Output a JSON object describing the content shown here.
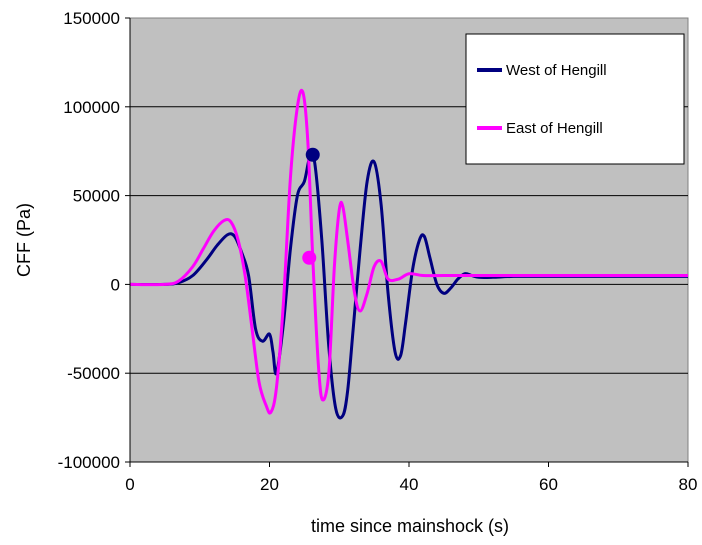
{
  "chart_data": {
    "type": "line",
    "title": "",
    "xlabel": "time since mainshock (s)",
    "ylabel": "CFF  (Pa)",
    "xlim": [
      0,
      80
    ],
    "ylim": [
      -100000,
      150000
    ],
    "xticks": [
      "0",
      "20",
      "40",
      "60",
      "80"
    ],
    "yticks": [
      "-100000",
      "-50000",
      "0",
      "50000",
      "100000",
      "150000"
    ],
    "grid": "horizontal",
    "plot_background": "#c0c0c0",
    "legend_position": "top-right",
    "series": [
      {
        "name": "West of Hengill",
        "color": "#000080",
        "x": [
          0,
          5,
          7,
          9,
          11,
          12.5,
          14,
          15,
          16,
          17,
          18,
          19,
          20,
          20.5,
          21,
          22,
          23,
          24,
          25,
          25.8,
          26.5,
          27.5,
          28.5,
          29.5,
          30.5,
          31.2,
          32,
          33,
          34,
          35,
          36,
          37,
          38,
          38.8,
          39.5,
          40.5,
          41.5,
          42.2,
          43,
          44,
          45,
          46,
          47,
          48,
          49,
          50,
          52,
          55,
          60,
          70,
          80
        ],
        "y": [
          0,
          0,
          1000,
          5000,
          14000,
          22000,
          28000,
          27000,
          18000,
          5000,
          -25000,
          -32000,
          -28000,
          -38000,
          -50000,
          -22000,
          20000,
          50000,
          58000,
          72000,
          68000,
          25000,
          -35000,
          -70000,
          -74000,
          -60000,
          -25000,
          20000,
          58000,
          69000,
          45000,
          -5000,
          -38000,
          -40000,
          -22000,
          8000,
          25000,
          27000,
          15000,
          0,
          -5000,
          -2000,
          3000,
          6000,
          5000,
          4000,
          4000,
          4500,
          4500,
          4500,
          4500
        ],
        "marker": {
          "x": 26.2,
          "y": 73000
        }
      },
      {
        "name": "East of Hengill",
        "color": "#ff00ff",
        "x": [
          0,
          5,
          7,
          9,
          10.5,
          12,
          13.5,
          14.5,
          15.5,
          16.5,
          17.5,
          18.5,
          19.5,
          20.2,
          21,
          22,
          23,
          24,
          24.8,
          25.5,
          26.2,
          27,
          27.6,
          28.5,
          29.3,
          30,
          30.5,
          31.2,
          32.2,
          33,
          34,
          35,
          36,
          37,
          38.5,
          40,
          42,
          45,
          50,
          60,
          70,
          80
        ],
        "y": [
          0,
          0,
          2000,
          10000,
          20000,
          30000,
          36000,
          35000,
          25000,
          5000,
          -25000,
          -55000,
          -68000,
          -72000,
          -58000,
          -10000,
          60000,
          100000,
          108000,
          80000,
          15000,
          -45000,
          -65000,
          -50000,
          10000,
          42000,
          44000,
          25000,
          -5000,
          -15000,
          -5000,
          10000,
          13000,
          3000,
          3000,
          6000,
          5000,
          5000,
          5000,
          5000,
          5000,
          5000
        ],
        "marker": {
          "x": 25.7,
          "y": 15000
        }
      }
    ]
  }
}
